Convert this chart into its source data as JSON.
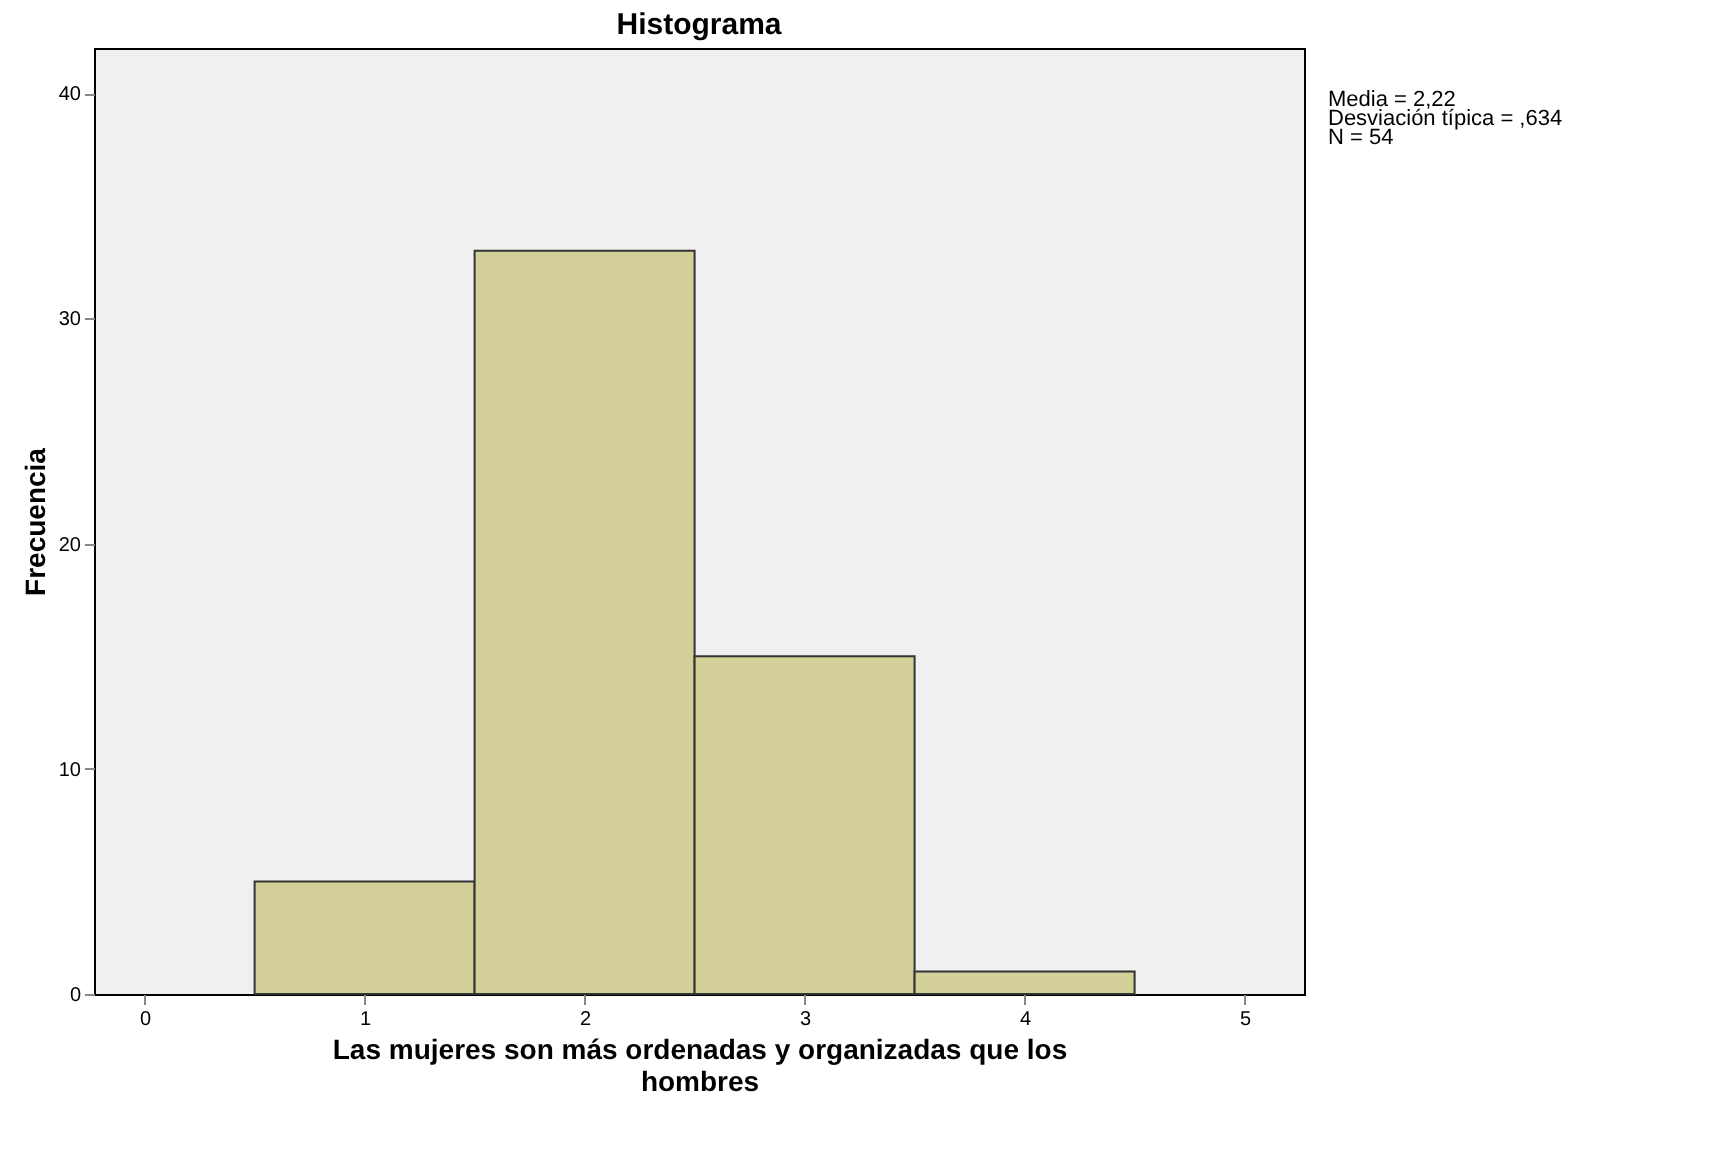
{
  "chart_data": {
    "type": "histogram",
    "title": "Histograma",
    "xlabel": "Las mujeres son más ordenadas y organizadas que los hombres",
    "ylabel": "Frecuencia",
    "bins": [
      0.5,
      1.5,
      2.5,
      3.5,
      4.5
    ],
    "values": [
      5,
      33,
      15,
      1
    ],
    "color": "#d3cf98",
    "xlim": [
      -0.23,
      5.27
    ],
    "xticks": [
      0,
      1,
      2,
      3,
      4,
      5
    ],
    "ylim": [
      0,
      42
    ],
    "yticks": [
      0,
      10,
      20,
      30,
      40
    ],
    "grid": false,
    "annotations": [
      "Media = 2,22",
      "Desviación típica = ,634",
      "N = 54"
    ]
  }
}
